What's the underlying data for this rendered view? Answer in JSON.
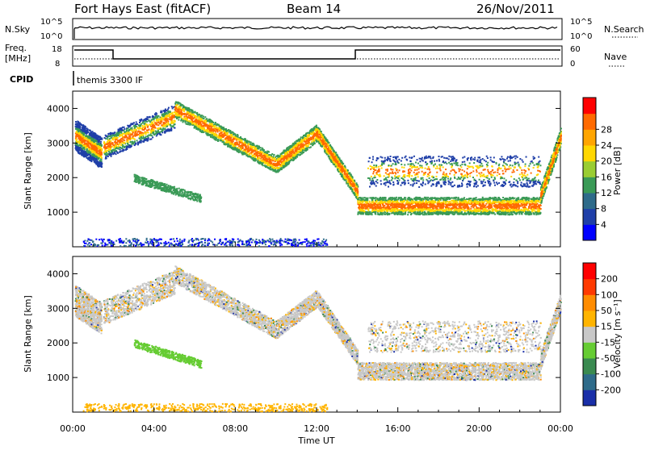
{
  "header": {
    "station": "Fort Hays East (fitACF)",
    "beam": "Beam 14",
    "date": "26/Nov/2011"
  },
  "top_panels": {
    "nsky_label": "N.Sky",
    "nsky_ticks": [
      "10^5",
      "10^0"
    ],
    "nsearch_label": "N.Search",
    "nsearch_ticks": [
      "10^5",
      "10^0"
    ],
    "freq_label": "Freq.",
    "freq_unit": "[MHz]",
    "freq_ticks": [
      "18",
      "8"
    ],
    "nave_label": "Nave",
    "nave_ticks": [
      "60",
      "0"
    ],
    "cpid_label": "CPID",
    "cpid_value": "themis 3300 IF"
  },
  "chart_data": [
    {
      "type": "heatmap",
      "name": "power-panel",
      "ylabel": "Slant Range [km]",
      "xlabel": "",
      "xlim_hours": [
        0,
        24
      ],
      "ylim_km": [
        0,
        4500
      ],
      "yticks": [
        "1000",
        "2000",
        "3000",
        "4000"
      ],
      "colorbar": {
        "label": "Power [dB]",
        "ticks": [
          "4",
          "8",
          "12",
          "16",
          "20",
          "24",
          "28"
        ],
        "colors": [
          "#0000ff",
          "#1f3fa8",
          "#2e6b8a",
          "#3a9a56",
          "#9acd32",
          "#ffd700",
          "#ffa500",
          "#ff6a00",
          "#ff0000"
        ]
      }
    },
    {
      "type": "heatmap",
      "name": "velocity-panel",
      "ylabel": "Slant Range [km]",
      "xlabel": "Time UT",
      "xticks": [
        "00:00",
        "04:00",
        "08:00",
        "12:00",
        "16:00",
        "20:00",
        "00:00"
      ],
      "xlim_hours": [
        0,
        24
      ],
      "ylim_km": [
        0,
        4500
      ],
      "yticks": [
        "1000",
        "2000",
        "3000",
        "4000"
      ],
      "colorbar": {
        "label": "Velocity [m s⁻¹]",
        "ticks": [
          "200",
          "100",
          "50",
          "15",
          "-15",
          "-50",
          "-100",
          "-200"
        ],
        "colors": [
          "#1a2fa8",
          "#2e6b8a",
          "#3a8a50",
          "#66cc33",
          "#c8c8c8",
          "#ffb400",
          "#ff8c00",
          "#ff3a00",
          "#ff0000"
        ]
      }
    }
  ]
}
